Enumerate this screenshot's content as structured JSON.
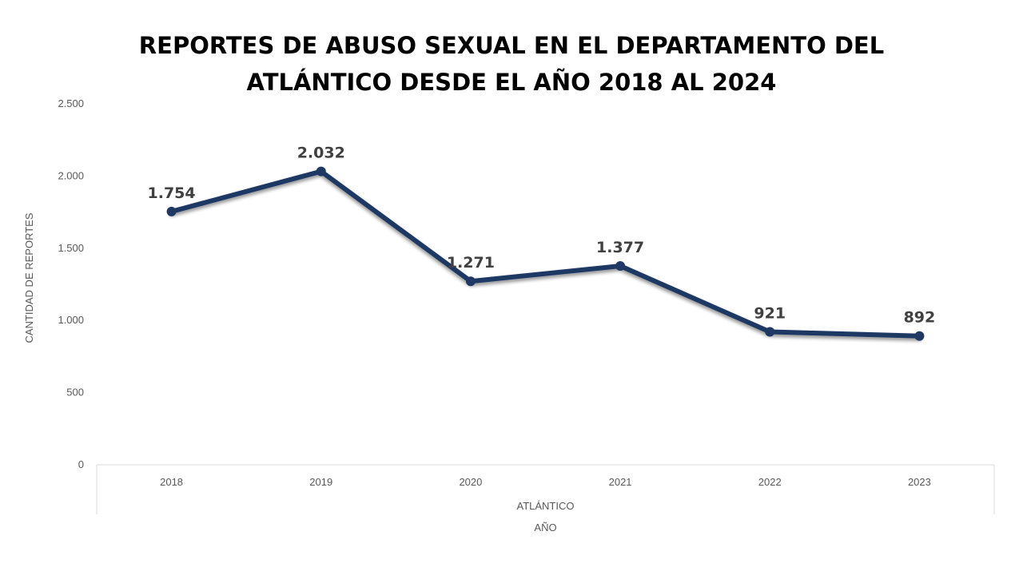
{
  "chart_data": {
    "type": "line",
    "title_lines": [
      "REPORTES DE ABUSO SEXUAL EN EL DEPARTAMENTO DEL",
      "ATLÁNTICO DESDE EL AÑO 2018 AL 2024"
    ],
    "categories": [
      "2018",
      "2019",
      "2020",
      "2021",
      "2022",
      "2023"
    ],
    "group_label": "ATLÁNTICO",
    "xlabel": "AÑO",
    "ylabel": "CANTIDAD DE REPORTES",
    "ylim": [
      0,
      2500
    ],
    "yticks": [
      0,
      500,
      1000,
      1500,
      2000,
      2500
    ],
    "ytick_labels": [
      "0",
      "500",
      "1.000",
      "1.500",
      "2.000",
      "2.500"
    ],
    "series": [
      {
        "values": [
          1754,
          2032,
          1271,
          1377,
          921,
          892
        ],
        "labels": [
          "1.754",
          "2.032",
          "1.271",
          "1.377",
          "921",
          "892"
        ],
        "color": "#1F3864"
      }
    ],
    "grid": false,
    "legend": "none"
  }
}
